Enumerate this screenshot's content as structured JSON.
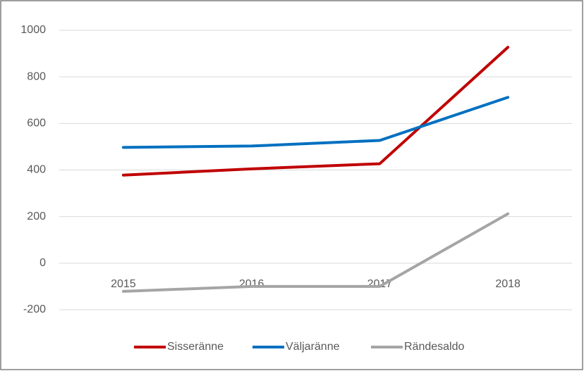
{
  "chart_data": {
    "type": "line",
    "categories": [
      "2015",
      "2016",
      "2017",
      "2018"
    ],
    "series": [
      {
        "name": "Sisseränne",
        "color": "#c00000",
        "values": [
          378,
          405,
          427,
          927
        ]
      },
      {
        "name": "Väljaränne",
        "color": "#0070c0",
        "values": [
          497,
          503,
          527,
          712
        ]
      },
      {
        "name": "Rändesaldo",
        "color": "#a5a5a5",
        "values": [
          -121,
          -100,
          -100,
          212
        ]
      }
    ],
    "ylim": [
      -200,
      1000
    ],
    "yticks": [
      -200,
      0,
      200,
      400,
      600,
      800,
      1000
    ],
    "grid": true,
    "legend": "bottom"
  }
}
